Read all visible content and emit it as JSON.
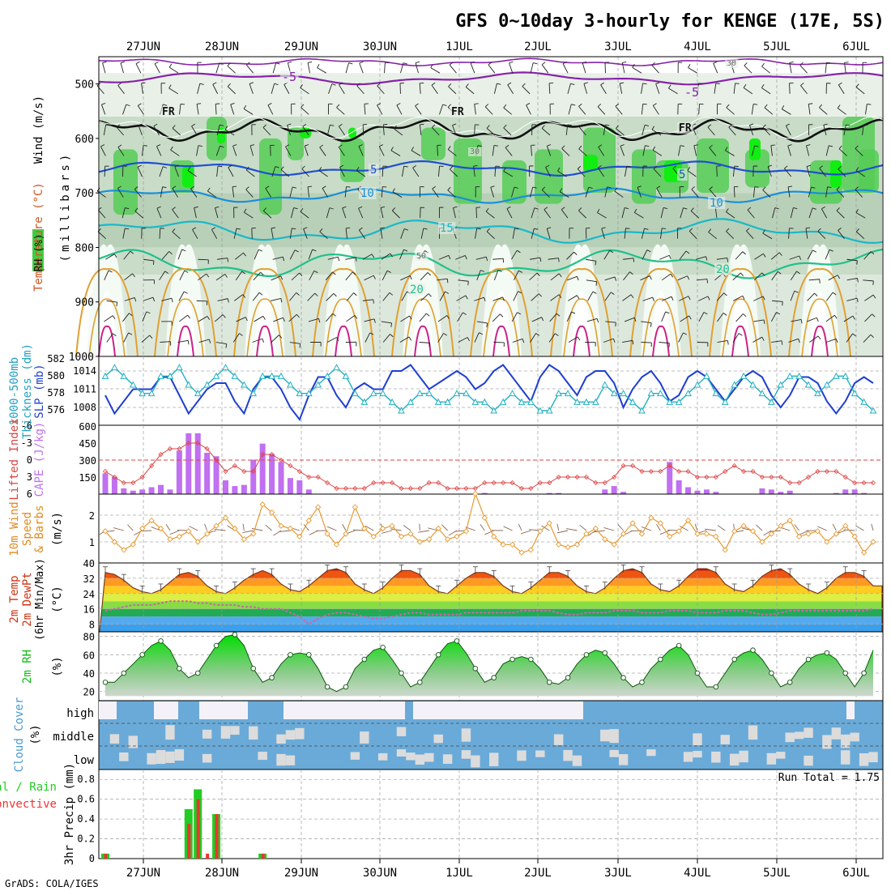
{
  "title": "GFS 0~10day 3-hourly for KENGE (17E, 5S)",
  "footer": "GrADS: COLA/IGES",
  "run_total_label": "Run Total = 1.75",
  "date_labels": [
    "27JUN",
    "28JUN",
    "29JUN",
    "30JUN",
    "1JUL",
    "2JUL",
    "3JUL",
    "4JUL",
    "5JUL",
    "6JUL"
  ],
  "colors": {
    "rh_green": "#22cc22",
    "temp_neg": "#8822aa",
    "temp_fr": "#111111",
    "temp_5": "#1f4fd0",
    "temp_10": "#1a8fd8",
    "temp_15": "#1ab8c8",
    "temp_20": "#22c08a",
    "temp_25": "#e0a030",
    "temp_30": "#cc2288",
    "slp": "#1f3fd0",
    "thickness": "#22b0c0",
    "cape": "#c070f0",
    "lifted": "#dd4444",
    "wind": "#e89a30",
    "rh2m": "#11cc11",
    "cloud": "#6aaad8",
    "precip_total": "#22cc22",
    "precip_conv": "#ee3333"
  },
  "panels": {
    "upper": {
      "ylabel_lines": [
        "Wind (m/s)",
        "Temperature (°C)",
        "RH (%)",
        "(millibars)"
      ],
      "ylabel_wind": "Wind (m/s)",
      "ylabel_temp": "Temperature (°C)",
      "ylabel_rh": "RH (%)",
      "ylabel_mb": "(millibars)",
      "ticks": [
        "500",
        "600",
        "700",
        "800",
        "900",
        "1000"
      ],
      "contour_labels": [
        "-5",
        "-5",
        "FR",
        "FR",
        "FR",
        "5",
        "5",
        "10",
        "10",
        "15",
        "20",
        "20",
        "30",
        "30",
        "50"
      ]
    },
    "thickness": {
      "ylabel_left": "1000-500mb",
      "ylabel_left2": "Thickness (dm)",
      "ylabel_right": "SLP (mb)",
      "left_ticks": [
        "582",
        "580",
        "578",
        "576"
      ],
      "right_ticks": [
        "1014",
        "1011",
        "1008"
      ]
    },
    "cape": {
      "ylabel_left": "Lifted Index",
      "ylabel_right": "CAPE (J/kg)",
      "left_ticks": [
        "-6",
        "-3",
        "0",
        "3",
        "6"
      ],
      "right_ticks": [
        "600",
        "450",
        "300",
        "150"
      ]
    },
    "wind10m": {
      "ylabel_lines": [
        "10m Wind",
        "Speed",
        "& Barbs",
        "(m/s)"
      ],
      "ticks": [
        "2",
        "1"
      ]
    },
    "temp2m": {
      "ylabel_lines": [
        "2m Temp",
        "2m DewPt",
        "(6hr Min/Max)",
        "(°C)"
      ],
      "ticks": [
        "40",
        "32",
        "24",
        "16",
        "8"
      ]
    },
    "rh2m": {
      "ylabel_lines": [
        "2m RH",
        "(%)"
      ],
      "ticks": [
        "80",
        "60",
        "40",
        "20"
      ]
    },
    "cloud": {
      "ylabel_lines": [
        "Cloud Cover",
        "(%)"
      ],
      "levels": [
        "high",
        "middle",
        "low"
      ]
    },
    "precip": {
      "ylabel_lines": [
        "Total / Rain",
        "Convective",
        "3hr Precip (mm)"
      ],
      "ylabel_total": "Total / Rain",
      "ylabel_conv": "Convective",
      "ylabel_mm": "3hr Precip (mm)",
      "ticks": [
        "0.8",
        "0.6",
        "0.4",
        "0.2",
        "0"
      ]
    }
  },
  "chart_data": [
    {
      "type": "line",
      "panel": "thickness",
      "series": [
        {
          "name": "SLP (mb)",
          "values": [
            1010,
            1007,
            1009,
            1011,
            1011,
            1011,
            1013,
            1013,
            1010,
            1007,
            1009,
            1011,
            1012,
            1012,
            1009,
            1007,
            1011,
            1013,
            1013,
            1011,
            1008,
            1006,
            1010,
            1013,
            1013,
            1010,
            1008,
            1011,
            1012,
            1011,
            1011,
            1014,
            1014,
            1015,
            1013,
            1011,
            1012,
            1013,
            1014,
            1013,
            1011,
            1012,
            1014,
            1015,
            1013,
            1011,
            1009,
            1013,
            1015,
            1014,
            1012,
            1010,
            1013,
            1014,
            1014,
            1012,
            1008,
            1011,
            1013,
            1014,
            1012,
            1009,
            1010,
            1013,
            1014,
            1013,
            1011,
            1009,
            1011,
            1013,
            1014,
            1013,
            1010,
            1008,
            1010,
            1013,
            1013,
            1012,
            1009,
            1007,
            1009,
            1012,
            1013,
            1012
          ]
        },
        {
          "name": "Thickness (dm)",
          "values": [
            580,
            581,
            580,
            579,
            578,
            578,
            580,
            580,
            581,
            579,
            578,
            579,
            580,
            581,
            580,
            579,
            578,
            580,
            580,
            580,
            579,
            578,
            578,
            579,
            580,
            581,
            580,
            578,
            577,
            578,
            578,
            577,
            576,
            577,
            578,
            578,
            577,
            577,
            578,
            578,
            577,
            577,
            576,
            577,
            578,
            577,
            577,
            576,
            576,
            578,
            578,
            577,
            577,
            577,
            579,
            578,
            578,
            577,
            576,
            578,
            578,
            577,
            577,
            578,
            579,
            580,
            578,
            577,
            579,
            580,
            579,
            578,
            577,
            579,
            580,
            580,
            579,
            578,
            579,
            580,
            580,
            578,
            577,
            576
          ]
        }
      ]
    },
    {
      "type": "bar",
      "panel": "cape",
      "series": [
        {
          "name": "CAPE (J/kg)",
          "values": [
            180,
            150,
            50,
            30,
            40,
            60,
            80,
            40,
            380,
            530,
            530,
            360,
            330,
            120,
            70,
            80,
            300,
            440,
            350,
            280,
            140,
            120,
            40,
            0,
            0,
            0,
            0,
            0,
            0,
            0,
            0,
            0,
            0,
            0,
            0,
            0,
            0,
            0,
            0,
            0,
            10,
            10,
            0,
            0,
            0,
            0,
            0,
            0,
            10,
            10,
            0,
            0,
            0,
            0,
            40,
            70,
            20,
            0,
            0,
            0,
            0,
            280,
            120,
            60,
            30,
            40,
            20,
            0,
            0,
            0,
            0,
            50,
            40,
            20,
            30,
            0,
            0,
            0,
            0,
            10,
            40,
            40,
            10,
            0
          ]
        },
        {
          "name": "Lifted Index",
          "values": [
            2,
            3,
            4,
            4,
            3,
            1,
            -1,
            -2,
            -2,
            -3,
            -3,
            -2,
            0,
            2,
            1,
            2,
            2,
            -1,
            -1,
            0,
            1,
            2,
            3,
            3,
            4,
            5,
            5,
            5,
            5,
            4,
            4,
            4,
            5,
            5,
            5,
            4,
            4,
            5,
            5,
            5,
            5,
            4,
            4,
            4,
            4,
            5,
            5,
            4,
            4,
            3,
            3,
            3,
            3,
            4,
            4,
            3,
            1,
            1,
            2,
            2,
            2,
            1,
            2,
            2,
            3,
            3,
            3,
            2,
            1,
            2,
            2,
            3,
            3,
            3,
            4,
            4,
            3,
            2,
            2,
            2,
            3,
            4,
            4,
            4
          ]
        }
      ],
      "reference_line": 0
    },
    {
      "type": "line",
      "panel": "wind10m",
      "series": [
        {
          "name": "10m Wind Speed (m/s)",
          "values": [
            1.4,
            1.0,
            0.7,
            0.9,
            1.5,
            1.8,
            1.5,
            1.1,
            1.2,
            1.4,
            1.0,
            1.3,
            1.6,
            1.9,
            1.5,
            1.1,
            1.3,
            2.4,
            2.1,
            1.6,
            1.5,
            1.2,
            1.8,
            2.3,
            1.3,
            0.9,
            1.3,
            2.3,
            1.5,
            1.2,
            1.5,
            1.6,
            1.2,
            1.3,
            1.0,
            1.1,
            1.5,
            1.1,
            1.2,
            1.4,
            2.8,
            1.9,
            1.2,
            0.9,
            0.9,
            0.6,
            0.7,
            1.4,
            1.7,
            0.9,
            0.8,
            0.9,
            1.3,
            1.5,
            1.1,
            0.9,
            1.3,
            1.7,
            1.3,
            1.9,
            1.7,
            1.2,
            1.4,
            1.8,
            1.3,
            1.3,
            1.2,
            0.7,
            1.4,
            1.6,
            1.4,
            1.0,
            1.3,
            1.6,
            1.8,
            1.2,
            1.3,
            1.4,
            1.0,
            1.3,
            1.6,
            1.2,
            0.6,
            1.0
          ]
        }
      ]
    },
    {
      "type": "area",
      "panel": "temp2m",
      "series": [
        {
          "name": "2m Temp (°C)",
          "values": [
            35,
            34,
            31,
            27,
            25,
            24,
            26,
            30,
            34,
            35,
            33,
            28,
            25,
            24,
            27,
            31,
            34,
            36,
            34,
            29,
            26,
            25,
            28,
            32,
            36,
            37,
            35,
            29,
            26,
            24,
            27,
            32,
            36,
            36,
            34,
            28,
            25,
            24,
            28,
            32,
            35,
            35,
            33,
            28,
            25,
            24,
            27,
            31,
            35,
            35,
            33,
            28,
            25,
            24,
            27,
            32,
            36,
            37,
            35,
            29,
            26,
            25,
            28,
            33,
            37,
            37,
            35,
            29,
            26,
            25,
            28,
            33,
            36,
            37,
            34,
            29,
            26,
            24,
            27,
            32,
            35,
            35,
            33,
            28
          ]
        },
        {
          "name": "2m DewPt (°C)",
          "values": [
            15,
            16,
            17,
            18,
            18,
            18,
            19,
            20,
            20,
            20,
            19,
            19,
            18,
            18,
            18,
            17,
            17,
            16,
            16,
            16,
            14,
            12,
            8,
            11,
            13,
            14,
            14,
            13,
            12,
            11,
            11,
            12,
            13,
            14,
            14,
            13,
            13,
            13,
            13,
            14,
            14,
            14,
            14,
            14,
            14,
            15,
            15,
            15,
            15,
            14,
            13,
            13,
            14,
            14,
            14,
            15,
            15,
            15,
            14,
            14,
            14,
            15,
            15,
            15,
            14,
            14,
            14,
            15,
            15,
            15,
            14,
            13,
            13,
            14,
            15,
            15,
            15,
            15,
            15,
            15,
            15,
            15,
            15,
            16
          ]
        }
      ]
    },
    {
      "type": "area",
      "panel": "rh2m",
      "series": [
        {
          "name": "2m RH (%)",
          "values": [
            30,
            30,
            40,
            50,
            60,
            70,
            75,
            65,
            45,
            35,
            40,
            55,
            70,
            80,
            82,
            70,
            45,
            30,
            35,
            50,
            60,
            62,
            60,
            45,
            25,
            20,
            25,
            45,
            55,
            65,
            68,
            55,
            40,
            25,
            30,
            45,
            60,
            72,
            75,
            62,
            45,
            30,
            35,
            50,
            55,
            58,
            55,
            45,
            30,
            28,
            35,
            50,
            60,
            65,
            62,
            50,
            35,
            25,
            30,
            45,
            55,
            65,
            70,
            60,
            40,
            25,
            25,
            40,
            55,
            62,
            65,
            55,
            40,
            25,
            30,
            45,
            55,
            60,
            62,
            55,
            40,
            25,
            40,
            65
          ]
        }
      ]
    },
    {
      "type": "heatmap",
      "panel": "cloud",
      "rows": [
        "high",
        "middle",
        "low"
      ]
    },
    {
      "type": "bar",
      "panel": "precip",
      "series": [
        {
          "name": "Total (mm)",
          "values": [
            0.05,
            0,
            0,
            0,
            0,
            0,
            0,
            0,
            0,
            0.5,
            0.7,
            0,
            0.45,
            0,
            0,
            0,
            0,
            0.05,
            0,
            0,
            0,
            0,
            0,
            0,
            0,
            0,
            0,
            0,
            0,
            0,
            0,
            0,
            0,
            0,
            0,
            0,
            0,
            0,
            0,
            0,
            0,
            0,
            0,
            0,
            0,
            0,
            0,
            0,
            0,
            0,
            0,
            0,
            0,
            0,
            0,
            0,
            0,
            0,
            0,
            0,
            0,
            0,
            0,
            0,
            0,
            0,
            0,
            0,
            0,
            0,
            0,
            0,
            0,
            0,
            0,
            0,
            0,
            0,
            0,
            0,
            0,
            0,
            0,
            0
          ]
        },
        {
          "name": "Convective (mm)",
          "values": [
            0.05,
            0,
            0,
            0,
            0,
            0,
            0,
            0,
            0,
            0.35,
            0.6,
            0.05,
            0.45,
            0,
            0,
            0,
            0,
            0.05,
            0,
            0,
            0,
            0,
            0,
            0,
            0,
            0,
            0,
            0,
            0,
            0,
            0,
            0,
            0,
            0,
            0,
            0,
            0,
            0,
            0,
            0,
            0,
            0,
            0,
            0,
            0,
            0,
            0,
            0,
            0,
            0,
            0,
            0,
            0,
            0,
            0,
            0,
            0,
            0,
            0,
            0,
            0,
            0,
            0,
            0,
            0,
            0,
            0,
            0,
            0,
            0,
            0,
            0,
            0,
            0,
            0,
            0,
            0,
            0,
            0,
            0,
            0,
            0,
            0,
            0
          ]
        }
      ],
      "ylim": [
        0,
        0.9
      ]
    }
  ]
}
